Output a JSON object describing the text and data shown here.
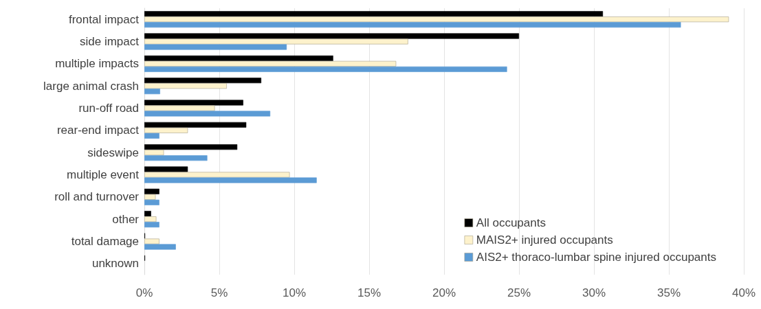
{
  "chart_data": {
    "type": "bar",
    "orientation": "horizontal",
    "categories": [
      "frontal impact",
      "side impact",
      "multiple impacts",
      "large animal crash",
      "run-off road",
      "rear-end impact",
      "sideswipe",
      "multiple event",
      "roll and turnover",
      "other",
      "total damage",
      "unknown"
    ],
    "series": [
      {
        "name": "All occupants",
        "color": "#000000",
        "values": [
          30.6,
          25.0,
          12.6,
          7.8,
          6.6,
          6.8,
          6.2,
          2.9,
          1.0,
          0.45,
          0.05,
          0.05
        ]
      },
      {
        "name": "MAIS2+ injured occupants",
        "color": "#fdf2cc",
        "values": [
          39.0,
          17.6,
          16.8,
          5.5,
          4.7,
          2.9,
          1.3,
          9.7,
          0.75,
          0.8,
          1.0,
          0
        ]
      },
      {
        "name": "AIS2+ thoraco-lumbar spine injured occupants",
        "color": "#5b9bd5",
        "values": [
          35.8,
          9.5,
          24.2,
          1.05,
          8.4,
          1.0,
          4.2,
          11.5,
          1.0,
          1.0,
          2.1,
          0
        ]
      }
    ],
    "xlim": [
      0,
      40
    ],
    "xticks": [
      {
        "value": 0,
        "label": "0%"
      },
      {
        "value": 5,
        "label": "5%"
      },
      {
        "value": 10,
        "label": "10%"
      },
      {
        "value": 15,
        "label": "15%"
      },
      {
        "value": 20,
        "label": "20%"
      },
      {
        "value": 25,
        "label": "25%"
      },
      {
        "value": 30,
        "label": "30%"
      },
      {
        "value": 35,
        "label": "35%"
      },
      {
        "value": 40,
        "label": "40%"
      }
    ],
    "grid": "x",
    "legend": "bottom right"
  }
}
